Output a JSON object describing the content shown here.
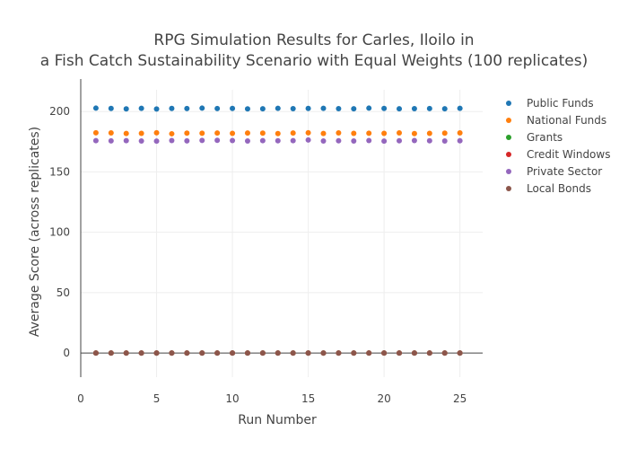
{
  "chart_data": {
    "type": "scatter",
    "title_lines": [
      "RPG Simulation Results for Carles, Iloilo in",
      "a Fish Catch Sustainability Scenario with Equal Weights (100 replicates)"
    ],
    "xlabel": "Run Number",
    "ylabel": "Average Score (across replicates)",
    "xlim": [
      0,
      26.5
    ],
    "ylim": [
      -20,
      218
    ],
    "x_ticks": [
      0,
      5,
      10,
      15,
      20,
      25
    ],
    "y_ticks": [
      0,
      50,
      100,
      150,
      200
    ],
    "grid": true,
    "legend_position": "top-right",
    "x": [
      1,
      2,
      3,
      4,
      5,
      6,
      7,
      8,
      9,
      10,
      11,
      12,
      13,
      14,
      15,
      16,
      17,
      18,
      19,
      20,
      21,
      22,
      23,
      24,
      25
    ],
    "series": [
      {
        "name": "Public Funds",
        "color": "#1f77b4",
        "values": [
          202.8,
          202.6,
          202.2,
          202.7,
          202.1,
          202.6,
          202.5,
          202.8,
          202.5,
          202.6,
          202.2,
          202.3,
          202.7,
          202.4,
          202.6,
          202.7,
          202.4,
          202.3,
          202.8,
          202.6,
          202.3,
          202.4,
          202.5,
          202.3,
          202.7
        ]
      },
      {
        "name": "National Funds",
        "color": "#ff7f0e",
        "values": [
          182.4,
          182.3,
          181.8,
          181.9,
          182.4,
          181.6,
          182.1,
          182.0,
          182.2,
          181.9,
          182.2,
          182.1,
          181.7,
          182.2,
          182.4,
          181.8,
          182.3,
          181.9,
          182.0,
          181.9,
          182.3,
          181.7,
          181.9,
          182.1,
          182.3
        ]
      },
      {
        "name": "Grants",
        "color": "#2ca02c",
        "values": [
          0,
          0,
          0,
          0,
          0,
          0,
          0,
          0,
          0,
          0,
          0,
          0,
          0,
          0,
          0,
          0,
          0,
          0,
          0,
          0,
          0,
          0,
          0,
          0,
          0
        ]
      },
      {
        "name": "Credit Windows",
        "color": "#d62728",
        "values": [
          0,
          0,
          0,
          0,
          0,
          0,
          0,
          0,
          0,
          0,
          0,
          0,
          0,
          0,
          0,
          0,
          0,
          0,
          0,
          0,
          0,
          0,
          0,
          0,
          0
        ]
      },
      {
        "name": "Private Sector",
        "color": "#9467bd",
        "values": [
          175.9,
          175.7,
          175.9,
          175.6,
          175.5,
          176.0,
          175.7,
          176.1,
          176.2,
          176.0,
          175.6,
          175.9,
          175.8,
          175.9,
          176.4,
          175.6,
          175.8,
          175.6,
          176.0,
          175.5,
          175.8,
          176.0,
          175.8,
          175.6,
          175.8
        ]
      },
      {
        "name": "Local Bonds",
        "color": "#8c564b",
        "values": [
          0,
          0,
          0,
          0,
          0,
          0,
          0,
          0,
          0,
          0,
          0,
          0,
          0,
          0,
          0,
          0,
          0,
          0,
          0,
          0,
          0,
          0,
          0,
          0,
          0
        ]
      }
    ]
  }
}
